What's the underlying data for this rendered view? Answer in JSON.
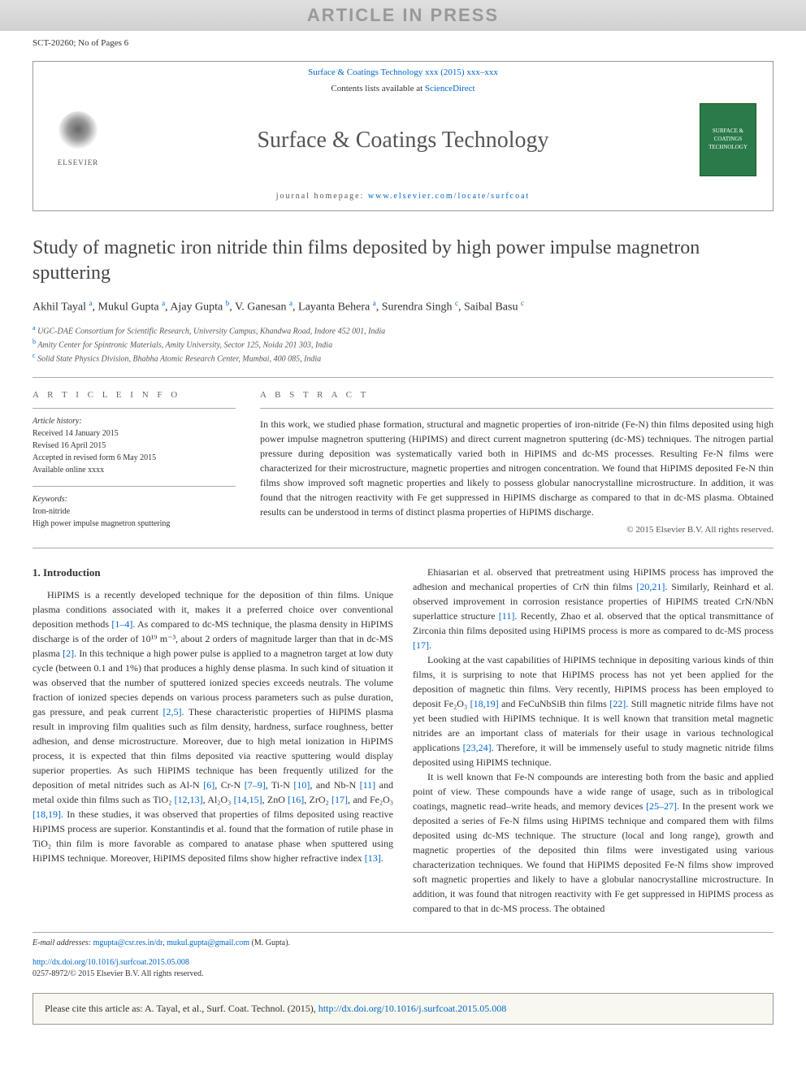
{
  "watermark": "ARTICLE IN PRESS",
  "ref_line": "SCT-20260; No of Pages 6",
  "header": {
    "journal_link": "Surface & Coatings Technology xxx (2015) xxx–xxx",
    "contents_prefix": "Contents lists available at ",
    "contents_link": "ScienceDirect",
    "journal_name": "Surface & Coatings Technology",
    "elsevier": "ELSEVIER",
    "cover_text": "SURFACE & COATINGS TECHNOLOGY",
    "homepage_prefix": "journal homepage: ",
    "homepage_url": "www.elsevier.com/locate/surfcoat"
  },
  "title": "Study of magnetic iron nitride thin films deposited by high power impulse magnetron sputtering",
  "authors_html": "Akhil Tayal <sup>a</sup>, Mukul Gupta <sup>a</sup>, Ajay Gupta <sup>b</sup>, V. Ganesan <sup>a</sup>, Layanta Behera <sup>a</sup>, Surendra Singh <sup>c</sup>, Saibal Basu <sup>c</sup>",
  "affiliations": {
    "a": "UGC-DAE Consortium for Scientific Research, University Campus, Khandwa Road, Indore 452 001, India",
    "b": "Amity Center for Spintronic Materials, Amity University, Sector 125, Noida 201 303, India",
    "c": "Solid State Physics Division, Bhabha Atomic Research Center, Mumbai, 400 085, India"
  },
  "article_info": {
    "heading": "A R T I C L E   I N F O",
    "history_label": "Article history:",
    "received": "Received 14 January 2015",
    "revised": "Revised 16 April 2015",
    "accepted": "Accepted in revised form 6 May 2015",
    "online": "Available online xxxx",
    "keywords_label": "Keywords:",
    "kw1": "Iron-nitride",
    "kw2": "High power impulse magnetron sputtering"
  },
  "abstract": {
    "heading": "A B S T R A C T",
    "text": "In this work, we studied phase formation, structural and magnetic properties of iron-nitride (Fe-N) thin films deposited using high power impulse magnetron sputtering (HiPIMS) and direct current magnetron sputtering (dc-MS) techniques. The nitrogen partial pressure during deposition was systematically varied both in HiPIMS and dc-MS processes. Resulting Fe-N films were characterized for their microstructure, magnetic properties and nitrogen concentration. We found that HiPIMS deposited Fe-N thin films show improved soft magnetic properties and likely to possess globular nanocrystalline microstructure. In addition, it was found that the nitrogen reactivity with Fe get suppressed in HiPIMS discharge as compared to that in dc-MS plasma. Obtained results can be understood in terms of distinct plasma properties of HiPIMS discharge.",
    "copyright": "© 2015 Elsevier B.V. All rights reserved."
  },
  "body": {
    "section1_heading": "1. Introduction",
    "col1_p1": "HiPIMS is a recently developed technique for the deposition of thin films. Unique plasma conditions associated with it, makes it a preferred choice over conventional deposition methods [1–4]. As compared to dc-MS technique, the plasma density in HiPIMS discharge is of the order of 10¹⁹ m⁻³, about 2 orders of magnitude larger than that in dc-MS plasma [2]. In this technique a high power pulse is applied to a magnetron target at low duty cycle (between 0.1 and 1%) that produces a highly dense plasma. In such kind of situation it was observed that the number of sputtered ionized species exceeds neutrals. The volume fraction of ionized species depends on various process parameters such as pulse duration, gas pressure, and peak current [2,5]. These characteristic properties of HiPIMS plasma result in improving film qualities such as film density, hardness, surface roughness, better adhesion, and dense microstructure. Moreover, due to high metal ionization in HiPIMS process, it is expected that thin films deposited via reactive sputtering would display superior properties. As such HiPIMS technique has been frequently utilized for the deposition of metal nitrides such as Al-N [6], Cr-N [7–9], Ti-N [10], and Nb-N [11] and metal oxide thin films such as TiO₂ [12,13], Al₂O₃ [14,15], ZnO [16], ZrO₂ [17], and Fe₂O₃ [18,19]. In these studies, it was observed that properties of films deposited using reactive HiPIMS process are superior. Konstantindis et al. found that the formation of rutile phase in TiO₂ thin film is more favorable as compared to anatase phase when sputtered using HiPIMS technique. Moreover, HiPIMS deposited films show higher refractive index [13].",
    "col2_p1": "Ehiasarian et al. observed that pretreatment using HiPIMS process has improved the adhesion and mechanical properties of CrN thin films [20,21]. Similarly, Reinhard et al. observed improvement in corrosion resistance properties of HiPIMS treated CrN/NbN superlattice structure [11]. Recently, Zhao et al. observed that the optical transmittance of Zirconia thin films deposited using HiPIMS process is more as compared to dc-MS process [17].",
    "col2_p2": "Looking at the vast capabilities of HiPIMS technique in depositing various kinds of thin films, it is surprising to note that HiPIMS process has not yet been applied for the deposition of magnetic thin films. Very recently, HiPIMS process has been employed to deposit Fe₂O₃ [18,19] and FeCuNbSiB thin films [22]. Still magnetic nitride films have not yet been studied with HiPIMS technique. It is well known that transition metal magnetic nitrides are an important class of materials for their usage in various technological applications [23,24]. Therefore, it will be immensely useful to study magnetic nitride films deposited using HiPIMS technique.",
    "col2_p3": "It is well known that Fe-N compounds are interesting both from the basic and applied point of view. These compounds have a wide range of usage, such as in tribological coatings, magnetic read–write heads, and memory devices [25–27]. In the present work we deposited a series of Fe-N films using HiPIMS technique and compared them with films deposited using dc-MS technique. The structure (local and long range), growth and magnetic properties of the deposited thin films were investigated using various characterization techniques. We found that HiPIMS deposited Fe-N films show improved soft magnetic properties and likely to have a globular nanocrystalline microstructure. In addition, it was found that nitrogen reactivity with Fe get suppressed in HiPIMS process as compared to that in dc-MS process. The obtained"
  },
  "footer": {
    "email_label": "E-mail addresses:",
    "email1": "mgupta@csr.res.in/dr",
    "email2": "mukul.gupta@gmail.com",
    "email_author": " (M. Gupta).",
    "doi": "http://dx.doi.org/10.1016/j.surfcoat.2015.05.008",
    "issn": "0257-8972/© 2015 Elsevier B.V. All rights reserved.",
    "cite_prefix": "Please cite this article as: A. Tayal, et al., Surf. Coat. Technol. (2015), ",
    "cite_link": "http://dx.doi.org/10.1016/j.surfcoat.2015.05.008"
  }
}
